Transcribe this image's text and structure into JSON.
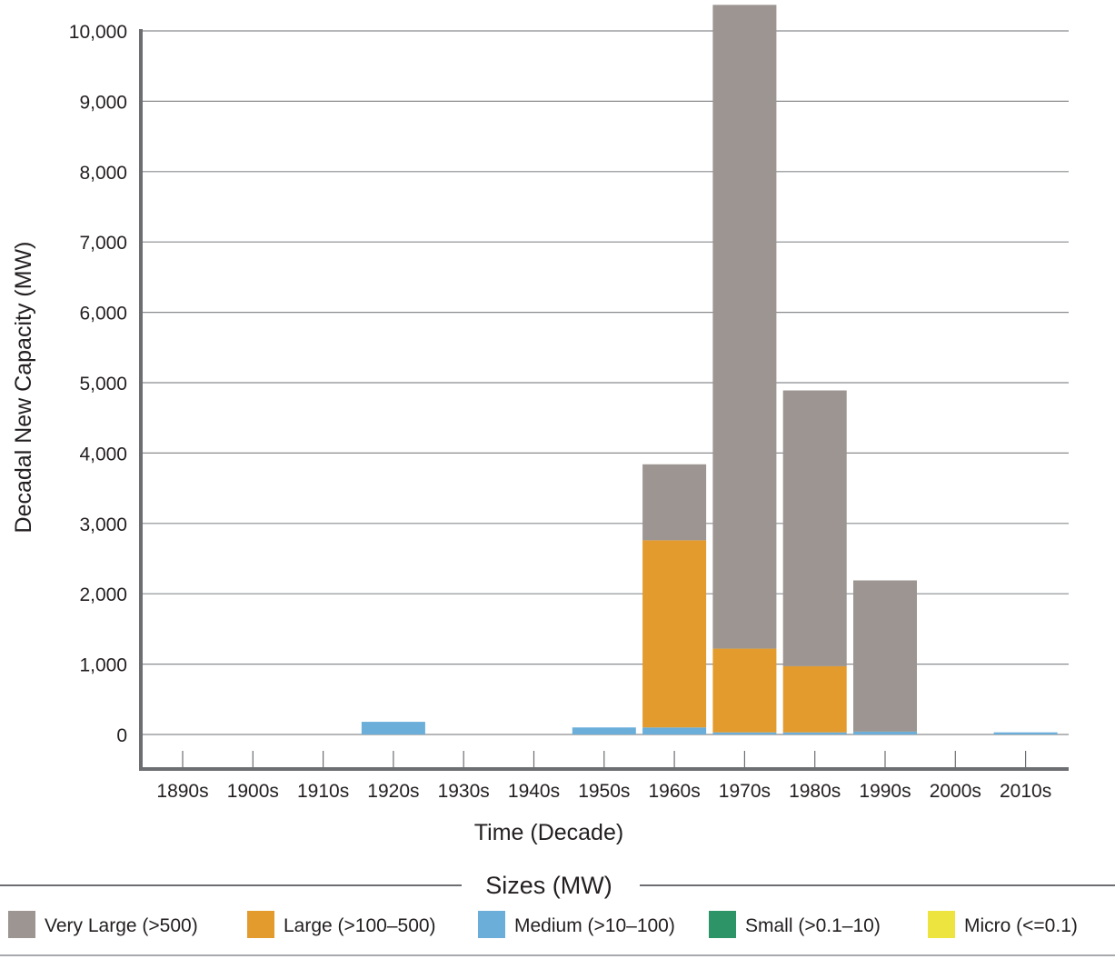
{
  "chart_data": {
    "type": "bar",
    "stacked": true,
    "title": "",
    "xlabel": "Time (Decade)",
    "ylabel": "Decadal New Capacity (MW)",
    "categories": [
      "1890s",
      "1900s",
      "1910s",
      "1920s",
      "1930s",
      "1940s",
      "1950s",
      "1960s",
      "1970s",
      "1980s",
      "1990s",
      "2000s",
      "2010s"
    ],
    "ylim": [
      0,
      10000
    ],
    "yticks": [
      0,
      1000,
      2000,
      3000,
      4000,
      5000,
      6000,
      7000,
      8000,
      9000,
      10000
    ],
    "ytick_labels": [
      "0",
      "1,000",
      "2,000",
      "3,000",
      "4,000",
      "5,000",
      "6,000",
      "7,000",
      "8,000",
      "9,000",
      "10,000"
    ],
    "grid": true,
    "series": [
      {
        "name": "Micro (<=0.1)",
        "color": "#ede43f",
        "values": [
          0,
          0,
          0,
          0,
          0,
          0,
          0,
          0,
          0,
          0,
          0,
          0,
          0
        ]
      },
      {
        "name": "Small (>0.1–10)",
        "color": "#2c9466",
        "values": [
          0,
          0,
          0,
          0,
          0,
          0,
          0,
          0,
          0,
          0,
          0,
          0,
          0
        ]
      },
      {
        "name": "Medium (>10–100)",
        "color": "#6aaed9",
        "values": [
          0,
          0,
          0,
          180,
          0,
          0,
          100,
          100,
          30,
          30,
          40,
          0,
          30
        ]
      },
      {
        "name": "Large (>100–500)",
        "color": "#e39b2e",
        "values": [
          0,
          0,
          0,
          0,
          0,
          0,
          0,
          2660,
          1190,
          940,
          0,
          0,
          0
        ]
      },
      {
        "name": "Very Large (>500)",
        "color": "#9c9591",
        "values": [
          0,
          0,
          0,
          0,
          0,
          0,
          0,
          1080,
          9150,
          3920,
          2150,
          0,
          0
        ]
      }
    ],
    "legend": {
      "title": "Sizes (MW)",
      "position": "bottom",
      "order": [
        "Very Large (>500)",
        "Large (>100–500)",
        "Medium (>10–100)",
        "Small (>0.1–10)",
        "Micro (<=0.1)"
      ]
    }
  }
}
